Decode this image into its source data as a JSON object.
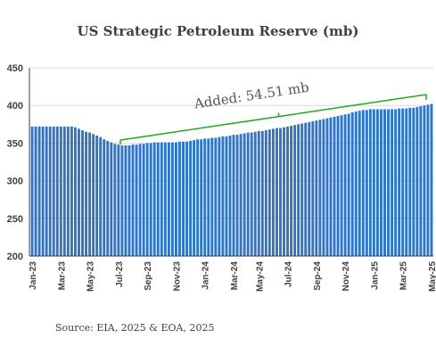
{
  "chart_data": {
    "type": "bar",
    "title": "US Strategic Petroleum Reserve (mb)",
    "source": "Source: EIA, 2025 & EOA, 2025",
    "annotation": {
      "text": "Added: 54.51 mb",
      "color": "#22aa22"
    },
    "ylim": [
      200,
      450
    ],
    "yticks": [
      200,
      250,
      300,
      350,
      400,
      450
    ],
    "grid": true,
    "bar_color": "#2e75c6",
    "xtick_labels": [
      "Jan-23",
      "Mar-23",
      "May-23",
      "Jul-23",
      "Sep-23",
      "Nov-23",
      "Jan-24",
      "Mar-24",
      "May-24",
      "Jul-24",
      "Sep-24",
      "Nov-24",
      "Jan-25",
      "Mar-25",
      "May-25"
    ],
    "values": [
      372,
      372,
      372,
      372,
      372,
      372,
      372,
      372,
      372,
      372,
      372,
      372,
      371,
      369,
      367,
      365,
      364,
      362,
      360,
      358,
      355,
      353,
      351,
      349,
      348,
      347,
      347,
      347,
      348,
      348,
      349,
      349,
      350,
      350,
      351,
      351,
      351,
      351,
      351,
      351,
      351,
      352,
      352,
      352,
      353,
      354,
      355,
      355,
      356,
      356,
      357,
      357,
      358,
      359,
      359,
      360,
      361,
      361,
      362,
      363,
      364,
      364,
      365,
      366,
      366,
      367,
      368,
      369,
      370,
      370,
      371,
      372,
      373,
      374,
      375,
      376,
      377,
      378,
      379,
      380,
      381,
      382,
      383,
      384,
      385,
      386,
      387,
      388,
      389,
      391,
      392,
      393,
      394,
      394,
      395,
      395,
      395,
      395,
      395,
      395,
      395,
      395,
      396,
      396,
      396,
      397,
      397,
      398,
      399,
      400,
      401,
      402
    ]
  }
}
